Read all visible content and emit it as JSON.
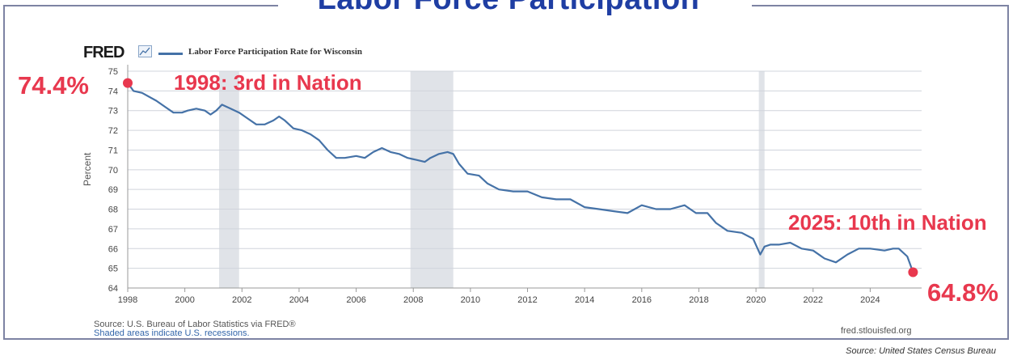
{
  "headline": "Labor Force Participation",
  "fred_brand": "FRED",
  "legend_label": "Labor Force Participation Rate for Wisconsin",
  "y_axis_label": "Percent",
  "source_line1": "Source: U.S. Bureau of Labor Statistics via FRED®",
  "source_line2": "Shaded areas indicate U.S. recessions.",
  "fred_url": "fred.stlouisfed.org",
  "credit": "Source: United States Census Bureau",
  "callouts": {
    "start_value": "74.4%",
    "start_note": "1998: 3rd in Nation",
    "end_note": "2025: 10th in Nation",
    "end_value": "64.8%"
  },
  "colors": {
    "headline": "#1f3ea3",
    "line": "#4572a7",
    "callout": "#e8384e",
    "recession": "#e0e3e8",
    "frame": "#7d83a3"
  },
  "chart_data": {
    "type": "line",
    "title": "Labor Force Participation Rate for Wisconsin",
    "ylabel": "Percent",
    "xlim": [
      1998,
      2025.8
    ],
    "ylim": [
      64,
      75
    ],
    "x_ticks": [
      1998,
      2000,
      2002,
      2004,
      2006,
      2008,
      2010,
      2012,
      2014,
      2016,
      2018,
      2020,
      2022,
      2024
    ],
    "y_ticks": [
      64,
      65,
      66,
      67,
      68,
      69,
      70,
      71,
      72,
      73,
      74,
      75
    ],
    "grid": true,
    "recessions": [
      [
        2001.2,
        2001.9
      ],
      [
        2007.9,
        2009.4
      ],
      [
        2020.1,
        2020.3
      ]
    ],
    "series": [
      {
        "name": "Labor Force Participation Rate for Wisconsin",
        "x": [
          1998.0,
          1998.2,
          1998.5,
          1999.0,
          1999.3,
          1999.6,
          1999.9,
          2000.1,
          2000.4,
          2000.7,
          2000.9,
          2001.1,
          2001.3,
          2001.6,
          2001.9,
          2002.2,
          2002.5,
          2002.8,
          2003.1,
          2003.3,
          2003.5,
          2003.8,
          2004.1,
          2004.4,
          2004.7,
          2005.0,
          2005.3,
          2005.6,
          2006.0,
          2006.3,
          2006.6,
          2006.9,
          2007.2,
          2007.5,
          2007.8,
          2008.1,
          2008.4,
          2008.6,
          2008.9,
          2009.2,
          2009.4,
          2009.6,
          2009.9,
          2010.3,
          2010.6,
          2011.0,
          2011.5,
          2012.0,
          2012.5,
          2013.0,
          2013.5,
          2014.0,
          2014.5,
          2015.0,
          2015.5,
          2016.0,
          2016.5,
          2017.0,
          2017.5,
          2017.9,
          2018.3,
          2018.6,
          2019.0,
          2019.5,
          2019.9,
          2020.15,
          2020.3,
          2020.5,
          2020.8,
          2021.2,
          2021.6,
          2022.0,
          2022.4,
          2022.8,
          2023.2,
          2023.6,
          2024.0,
          2024.5,
          2024.8,
          2025.0,
          2025.3,
          2025.5
        ],
        "values": [
          74.4,
          74.0,
          73.9,
          73.5,
          73.2,
          72.9,
          72.9,
          73.0,
          73.1,
          73.0,
          72.8,
          73.0,
          73.3,
          73.1,
          72.9,
          72.6,
          72.3,
          72.3,
          72.5,
          72.7,
          72.5,
          72.1,
          72.0,
          71.8,
          71.5,
          71.0,
          70.6,
          70.6,
          70.7,
          70.6,
          70.9,
          71.1,
          70.9,
          70.8,
          70.6,
          70.5,
          70.4,
          70.6,
          70.8,
          70.9,
          70.8,
          70.3,
          69.8,
          69.7,
          69.3,
          69.0,
          68.9,
          68.9,
          68.6,
          68.5,
          68.5,
          68.1,
          68.0,
          67.9,
          67.8,
          68.2,
          68.0,
          68.0,
          68.2,
          67.8,
          67.8,
          67.3,
          66.9,
          66.8,
          66.5,
          65.7,
          66.1,
          66.2,
          66.2,
          66.3,
          66.0,
          65.9,
          65.5,
          65.3,
          65.7,
          66.0,
          66.0,
          65.9,
          66.0,
          66.0,
          65.6,
          64.8
        ]
      }
    ]
  }
}
